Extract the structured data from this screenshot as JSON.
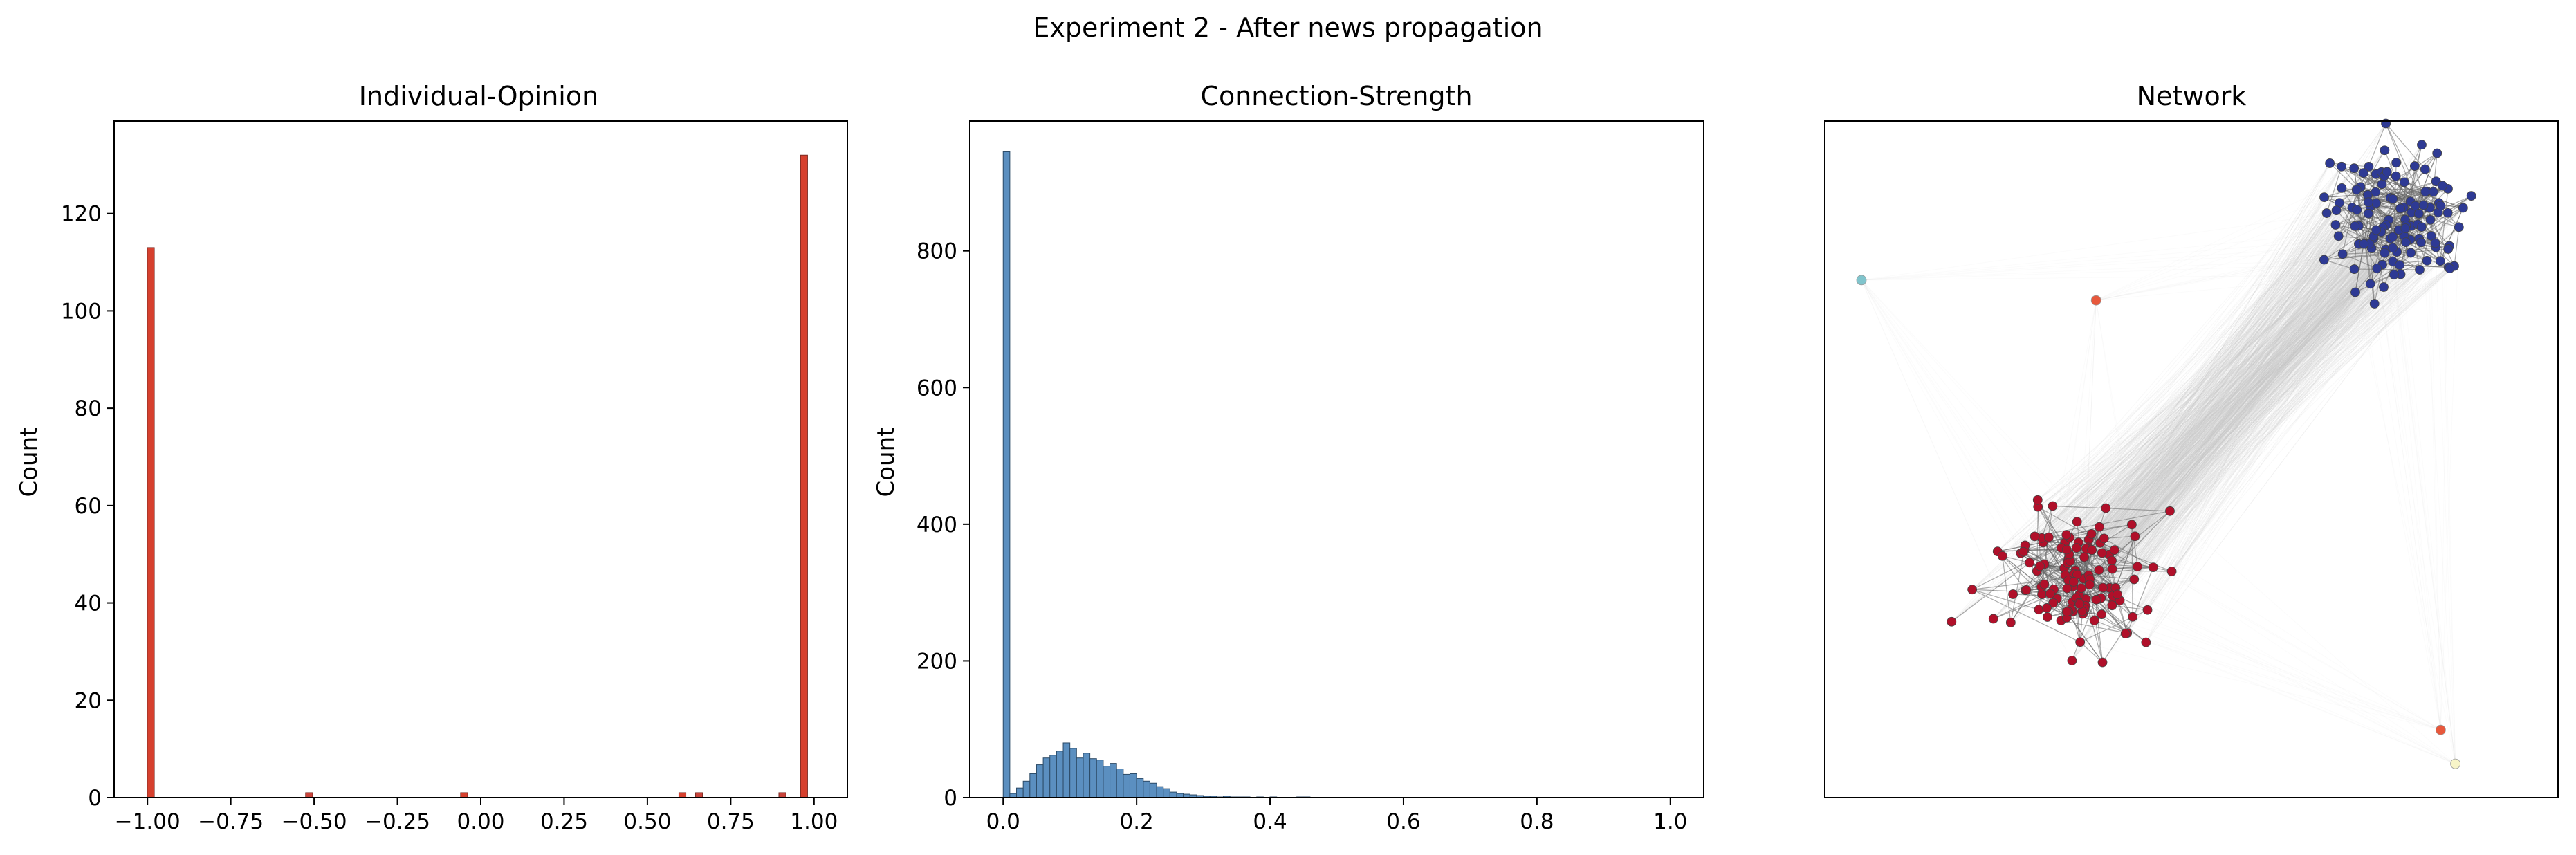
{
  "suptitle": "Experiment 2 - After news propagation",
  "chart_data": [
    {
      "type": "bar",
      "title": "Individual-Opinion",
      "xlabel": "",
      "ylabel": "Count",
      "xlim": [
        -1.1,
        1.1
      ],
      "ylim": [
        0,
        139
      ],
      "xticks": [
        -1.0,
        -0.75,
        -0.5,
        -0.25,
        0.0,
        0.25,
        0.5,
        0.75,
        1.0
      ],
      "xtick_labels": [
        "−1.00",
        "−0.75",
        "−0.50",
        "−0.25",
        "0.00",
        "0.25",
        "0.50",
        "0.75",
        "1.00"
      ],
      "yticks": [
        0,
        20,
        40,
        60,
        80,
        100,
        120
      ],
      "bin_width": 0.021,
      "bars": [
        {
          "x": -0.99,
          "value": 113,
          "color": "#d6402e"
        },
        {
          "x": -0.515,
          "value": 1,
          "color": "#c9433a"
        },
        {
          "x": -0.05,
          "value": 1,
          "color": "#d6402e"
        },
        {
          "x": 0.605,
          "value": 1,
          "color": "#d6402e"
        },
        {
          "x": 0.655,
          "value": 1,
          "color": "#c9433a"
        },
        {
          "x": 0.905,
          "value": 1,
          "color": "#c9433a"
        },
        {
          "x": 0.97,
          "value": 132,
          "color": "#d6402e"
        }
      ]
    },
    {
      "type": "bar",
      "title": "Connection-Strength",
      "xlabel": "",
      "ylabel": "Count",
      "xlim": [
        -0.05,
        1.05
      ],
      "ylim": [
        0,
        990
      ],
      "xticks": [
        0.0,
        0.2,
        0.4,
        0.6,
        0.8,
        1.0
      ],
      "xtick_labels": [
        "0.0",
        "0.2",
        "0.4",
        "0.6",
        "0.8",
        "1.0"
      ],
      "yticks": [
        0,
        200,
        400,
        600,
        800
      ],
      "bin_width": 0.01,
      "bar_color": "#5b8fc0",
      "bin_starts": [
        0.0,
        0.01,
        0.02,
        0.03,
        0.04,
        0.05,
        0.06,
        0.07,
        0.08,
        0.09,
        0.1,
        0.11,
        0.12,
        0.13,
        0.14,
        0.15,
        0.16,
        0.17,
        0.18,
        0.19,
        0.2,
        0.21,
        0.22,
        0.23,
        0.24,
        0.25,
        0.26,
        0.27,
        0.28,
        0.29,
        0.3,
        0.31,
        0.32,
        0.33,
        0.34,
        0.35,
        0.36,
        0.37,
        0.38,
        0.39,
        0.4,
        0.41,
        0.42,
        0.43,
        0.44,
        0.45,
        0.46,
        0.47,
        0.48,
        0.49,
        0.5
      ],
      "values": [
        945,
        6,
        14,
        24,
        35,
        48,
        58,
        62,
        68,
        80,
        72,
        58,
        65,
        57,
        55,
        46,
        50,
        42,
        34,
        35,
        28,
        24,
        21,
        16,
        13,
        8,
        6,
        5,
        4,
        3,
        2,
        2,
        1,
        2,
        1,
        1,
        1,
        0,
        1,
        0,
        1,
        0,
        0,
        0,
        1,
        1,
        0,
        0,
        0,
        0,
        0
      ]
    },
    {
      "type": "scatter",
      "title": "Network",
      "description_role": "network graph",
      "grid": false,
      "axes_ticks": false,
      "clusters": [
        {
          "name": "",
          "color": "#2e3a94",
          "center": [
            0.78,
            0.14
          ],
          "node_count": 120
        },
        {
          "name": "",
          "color": "#b0102a",
          "center": [
            0.34,
            0.68
          ],
          "node_count": 125
        }
      ],
      "isolated_nodes": [
        {
          "x": 0.05,
          "y": 0.235,
          "color": "#80c4cc"
        },
        {
          "x": 0.37,
          "y": 0.265,
          "color": "#e8583c"
        },
        {
          "x": 0.84,
          "y": 0.9,
          "color": "#e8583c"
        },
        {
          "x": 0.86,
          "y": 0.95,
          "color": "#f7f4c8"
        }
      ],
      "colors": {
        "edge": "#c8c8c8",
        "intra_edge": "#666666"
      }
    }
  ]
}
